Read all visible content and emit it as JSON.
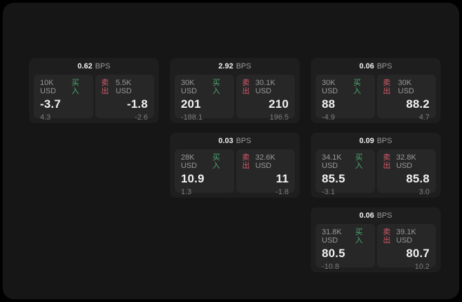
{
  "labels": {
    "bps_unit": "BPS",
    "buy": "买入",
    "sell": "卖出"
  },
  "colors": {
    "buy": "#4caa70",
    "sell": "#d45a68",
    "surface": "#161616",
    "card": "#1e1e1e",
    "tile": "#272727"
  },
  "cards": [
    {
      "bps": "0.62",
      "col": 1,
      "row": 1,
      "buy": {
        "notional": "10K USD",
        "price": "-3.7",
        "change": "4.3"
      },
      "sell": {
        "notional": "5.5K USD",
        "price": "-1.8",
        "change": "-2.6"
      }
    },
    {
      "bps": "2.92",
      "col": 2,
      "row": 1,
      "buy": {
        "notional": "30K USD",
        "price": "201",
        "change": "-188.1"
      },
      "sell": {
        "notional": "30.1K USD",
        "price": "210",
        "change": "196.5"
      }
    },
    {
      "bps": "0.06",
      "col": 3,
      "row": 1,
      "buy": {
        "notional": "30K USD",
        "price": "88",
        "change": "-4.9"
      },
      "sell": {
        "notional": "30K USD",
        "price": "88.2",
        "change": "4.7"
      }
    },
    {
      "bps": "0.03",
      "col": 2,
      "row": 2,
      "buy": {
        "notional": "28K USD",
        "price": "10.9",
        "change": "1.3"
      },
      "sell": {
        "notional": "32.6K USD",
        "price": "11",
        "change": "-1.8"
      }
    },
    {
      "bps": "0.09",
      "col": 3,
      "row": 2,
      "buy": {
        "notional": "34.1K USD",
        "price": "85.5",
        "change": "-3.1"
      },
      "sell": {
        "notional": "32.8K USD",
        "price": "85.8",
        "change": "3.0"
      }
    },
    {
      "bps": "0.06",
      "col": 3,
      "row": 3,
      "buy": {
        "notional": "31.8K USD",
        "price": "80.5",
        "change": "-10.8"
      },
      "sell": {
        "notional": "39.1K USD",
        "price": "80.7",
        "change": "10.2"
      }
    }
  ]
}
